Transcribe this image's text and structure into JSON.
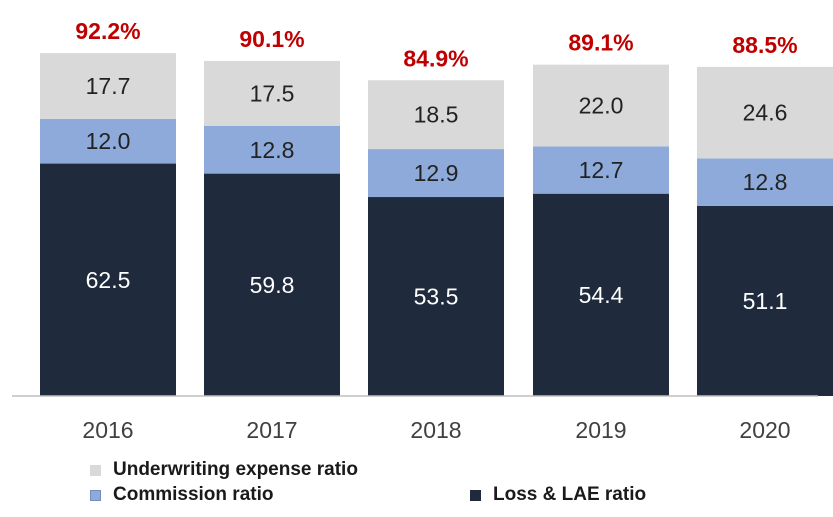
{
  "chart_data": {
    "type": "bar",
    "stacked": true,
    "categories": [
      "2016",
      "2017",
      "2018",
      "2019",
      "2020"
    ],
    "series": [
      {
        "name": "Loss & LAE ratio",
        "color": "#1f2a3c",
        "label_color": "#ffffff",
        "values": [
          62.5,
          59.8,
          53.5,
          54.4,
          51.1
        ]
      },
      {
        "name": "Commission ratio",
        "color": "#8eaadb",
        "label_color": "#222222",
        "values": [
          12.0,
          12.8,
          12.9,
          12.7,
          12.8
        ]
      },
      {
        "name": "Underwriting expense ratio",
        "color": "#d9d9d9",
        "label_color": "#222222",
        "values": [
          17.7,
          17.5,
          18.5,
          22.0,
          24.6
        ]
      }
    ],
    "totals": [
      "92.2%",
      "90.1%",
      "84.9%",
      "89.1%",
      "88.5%"
    ],
    "total_color": "#c00000",
    "ylim": [
      0,
      96.8
    ],
    "grid": false,
    "legend_position": "bottom",
    "title": "",
    "xlabel": "",
    "ylabel": ""
  },
  "legend": {
    "items": [
      {
        "label": "Underwriting expense ratio",
        "color": "#d9d9d9"
      },
      {
        "label": "Commission ratio",
        "color": "#8eaadb"
      },
      {
        "label": "Loss & LAE ratio",
        "color": "#1f2a3c"
      }
    ]
  }
}
